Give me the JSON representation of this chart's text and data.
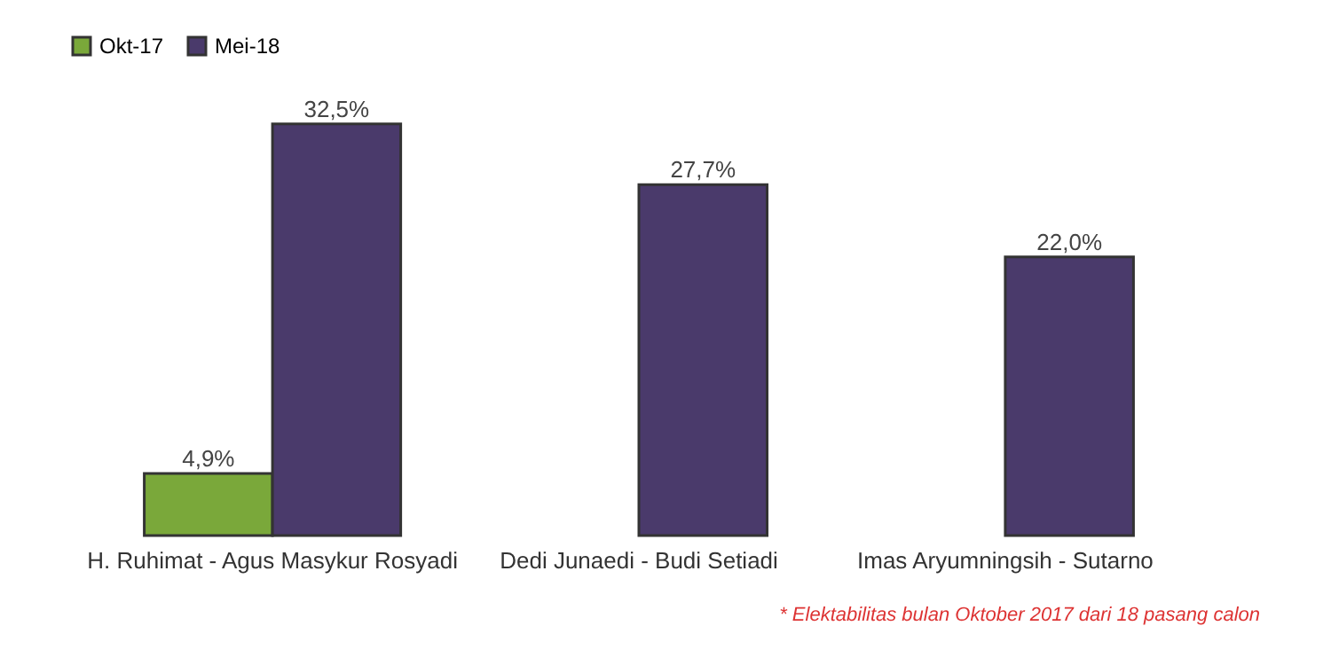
{
  "chart_data": {
    "type": "bar",
    "categories": [
      "H. Ruhimat - Agus Masykur Rosyadi",
      "Dedi Junaedi - Budi Setiadi",
      "Imas Aryumningsih - Sutarno"
    ],
    "series": [
      {
        "name": "Okt-17",
        "color": "#7aa83a",
        "values": [
          4.9,
          null,
          null
        ],
        "value_labels": [
          "4,9%",
          null,
          null
        ]
      },
      {
        "name": "Mei-18",
        "color": "#4a3a6b",
        "values": [
          32.5,
          27.7,
          22.0
        ],
        "value_labels": [
          "32,5%",
          "27,7%",
          "22,0%"
        ]
      }
    ],
    "legend": "top",
    "annotations": [
      "* Elektabilitas bulan Oktober 2017 dari 18 pasang calon"
    ]
  }
}
